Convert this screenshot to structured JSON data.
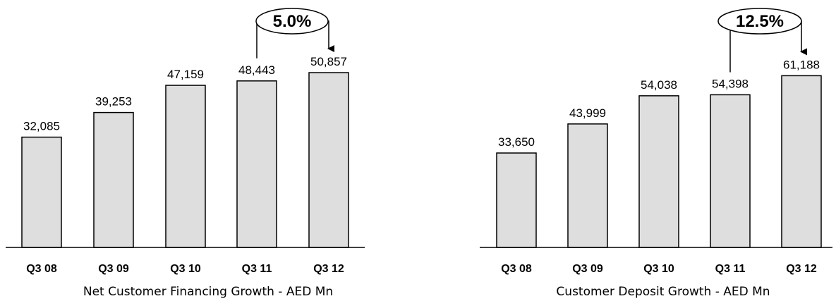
{
  "chart_data": [
    {
      "type": "bar",
      "title": "Net Customer Financing Growth - AED Mn",
      "categories": [
        "Q3 08",
        "Q3 09",
        "Q3 10",
        "Q3 11",
        "Q3 12"
      ],
      "values": [
        32085,
        39253,
        47159,
        48443,
        50857
      ],
      "value_labels": [
        "32,085",
        "39,253",
        "47,159",
        "48,443",
        "50,857"
      ],
      "growth_label": "5.0%",
      "colors": {
        "bar_fill": "#dedede",
        "bar_stroke": "#000000"
      }
    },
    {
      "type": "bar",
      "title": "Customer Deposit Growth - AED Mn",
      "categories": [
        "Q3 08",
        "Q3 09",
        "Q3 10",
        "Q3 11",
        "Q3 12"
      ],
      "values": [
        33650,
        43999,
        54038,
        54398,
        61188
      ],
      "value_labels": [
        "33,650",
        "43,999",
        "54,038",
        "54,398",
        "61,188"
      ],
      "growth_label": "12.5%",
      "colors": {
        "bar_fill": "#dedede",
        "bar_stroke": "#000000"
      }
    }
  ]
}
